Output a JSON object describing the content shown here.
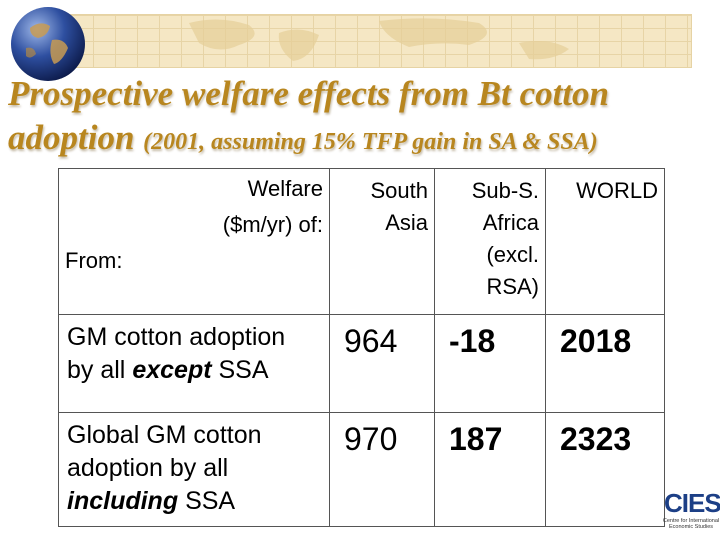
{
  "title": {
    "line1": "Prospective welfare effects from Bt cotton",
    "line2_main": "adoption",
    "line2_sub": "(2001, assuming 15% TFP gain in SA & SSA)"
  },
  "table": {
    "corner": {
      "line1": "Welfare",
      "line2": "($m/yr) of:",
      "line3": "From:"
    },
    "columns": {
      "south_asia": [
        "South",
        "Asia"
      ],
      "ssa": [
        "Sub-S.",
        "Africa",
        "(excl.",
        "RSA)"
      ],
      "world": "WORLD"
    },
    "rows": [
      {
        "label_parts": [
          "GM cotton adoption",
          "by all",
          "except",
          "SSA"
        ],
        "south_asia": "964",
        "ssa": "-18",
        "world": "2018"
      },
      {
        "label_parts": [
          "Global GM cotton",
          "adoption by all",
          "including",
          "SSA"
        ],
        "south_asia": "970",
        "ssa": "187",
        "world": "2323"
      }
    ]
  },
  "logo": {
    "mark": "CIES",
    "subtitle_line1": "Centre for International",
    "subtitle_line2": "Economic Studies"
  },
  "colors": {
    "title": "#b8861f",
    "highlight": "#d98a1e",
    "banner": "#f5e7c4",
    "logo": "#1c3f86"
  }
}
